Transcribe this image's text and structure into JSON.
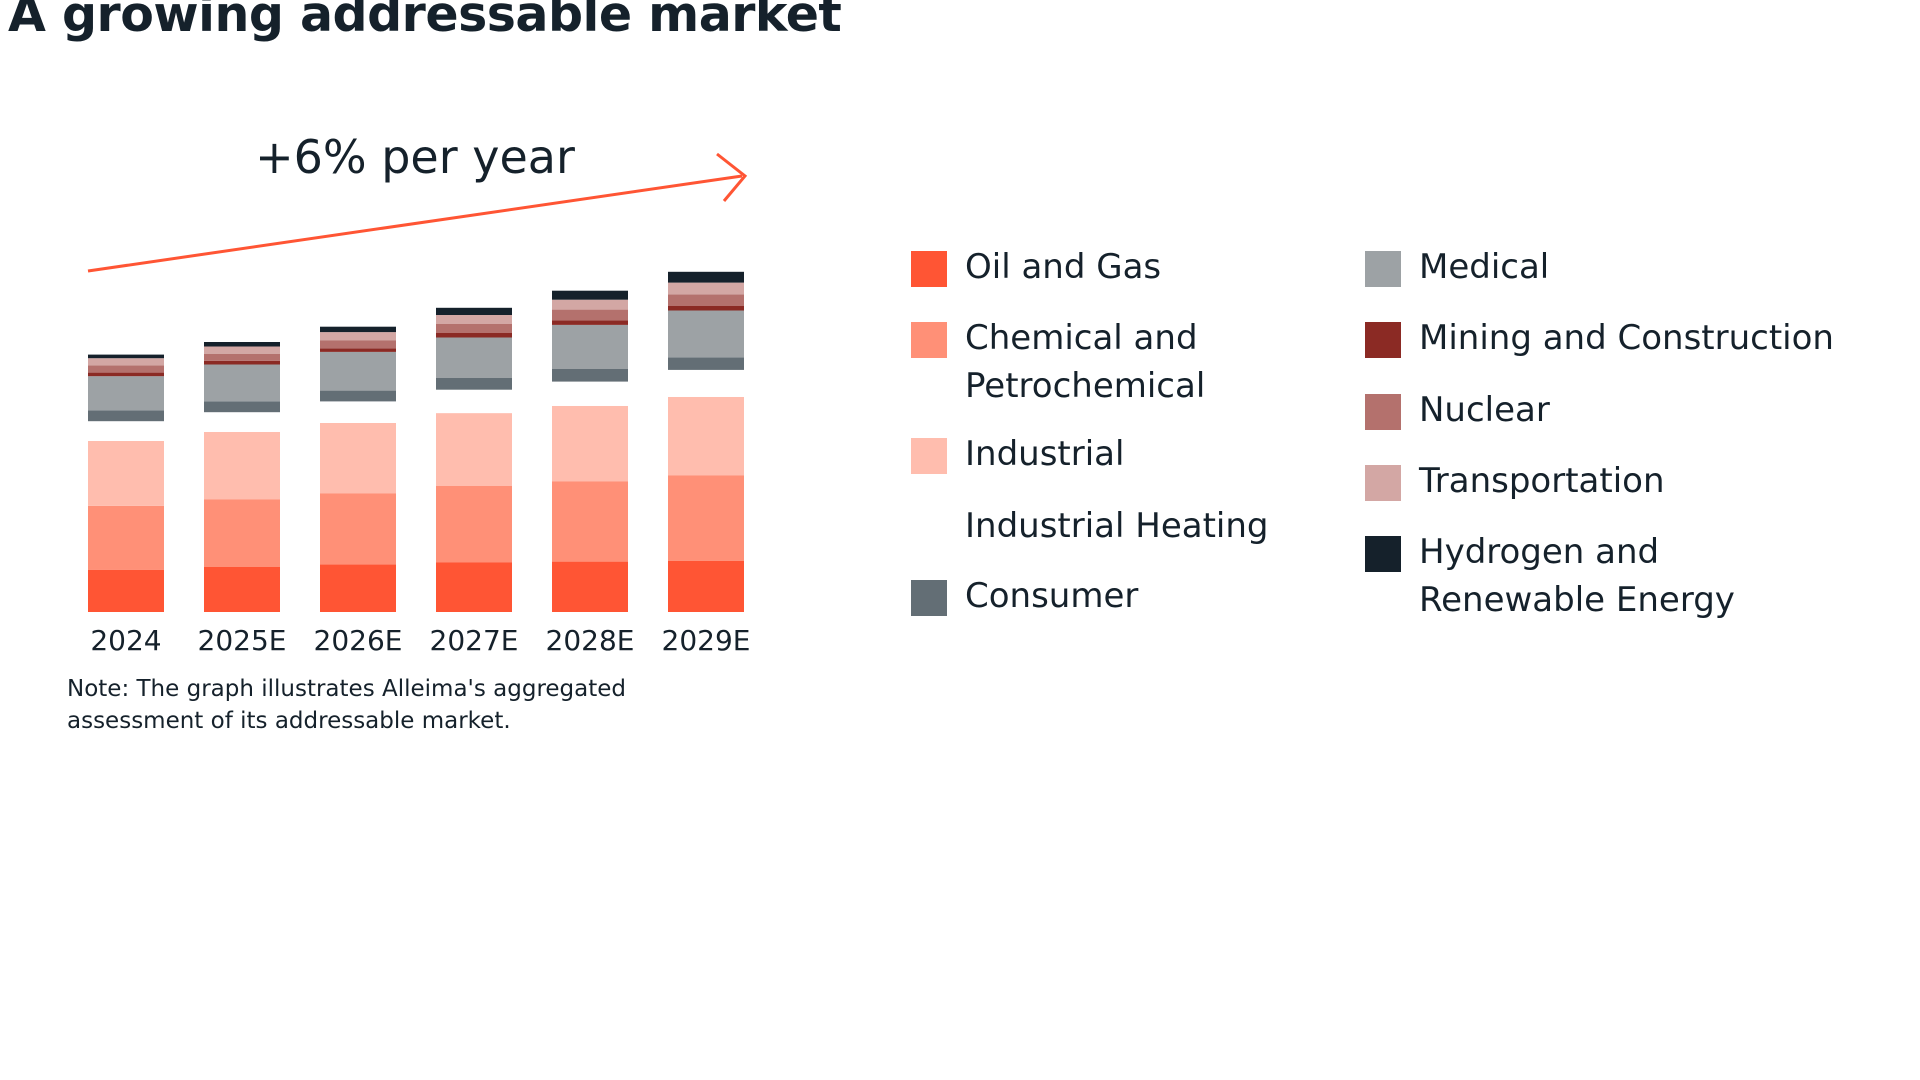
{
  "title": "A growing addressable market",
  "annotation": "+6% per year",
  "note": "Note: The graph illustrates Alleima's aggregated assessment of its addressable market.",
  "colors": {
    "text": "#15212b",
    "arrow": "#ff5534"
  },
  "legend": [
    {
      "label": "Oil and Gas",
      "color": "#ff5534"
    },
    {
      "label": "Chemical and Petrochemical",
      "color": "#ff9077"
    },
    {
      "label": "Industrial",
      "color": "#ffbdae"
    },
    {
      "label": "Industrial Heating",
      "color": "#ffffff"
    },
    {
      "label": "Consumer",
      "color": "#636e75"
    },
    {
      "label": "Medical",
      "color": "#9da2a5"
    },
    {
      "label": "Mining and Construction",
      "color": "#8b2a24"
    },
    {
      "label": "Nuclear",
      "color": "#b4716d"
    },
    {
      "label": "Transportation",
      "color": "#d3a7a4"
    },
    {
      "label": "Hydrogen and Renewable Energy",
      "color": "#15212b"
    }
  ],
  "chart_data": {
    "type": "bar",
    "stacked": true,
    "categories": [
      "2024",
      "2025E",
      "2026E",
      "2027E",
      "2028E",
      "2029E"
    ],
    "series": [
      {
        "name": "Oil and Gas",
        "color": "#ff5534",
        "values": [
          47,
          50,
          53,
          55,
          56,
          57
        ]
      },
      {
        "name": "Chemical and Petrochemical",
        "color": "#ff9077",
        "values": [
          71,
          75,
          79,
          85,
          89,
          95
        ]
      },
      {
        "name": "Industrial",
        "color": "#ffbdae",
        "values": [
          72,
          75,
          78,
          81,
          84,
          87
        ]
      },
      {
        "name": "Industrial Heating",
        "color": "#ffffff",
        "values": [
          22,
          22,
          24,
          26,
          27,
          30
        ]
      },
      {
        "name": "Consumer",
        "color": "#636e75",
        "values": [
          12,
          12,
          12,
          13,
          14,
          14
        ]
      },
      {
        "name": "Medical",
        "color": "#9da2a5",
        "values": [
          38,
          41,
          43,
          45,
          49,
          52
        ]
      },
      {
        "name": "Mining and Construction",
        "color": "#8b2a24",
        "values": [
          4,
          4,
          4,
          5,
          5,
          5
        ]
      },
      {
        "name": "Nuclear",
        "color": "#b4716d",
        "values": [
          8,
          8,
          9,
          10,
          12,
          13
        ]
      },
      {
        "name": "Transportation",
        "color": "#d3a7a4",
        "values": [
          8,
          8,
          9,
          10,
          11,
          13
        ]
      },
      {
        "name": "Hydrogen and Renewable Energy",
        "color": "#15212b",
        "values": [
          4,
          5,
          6,
          8,
          10,
          12
        ]
      }
    ],
    "title": "A growing addressable market",
    "annotation": "+6% per year",
    "xlabel": "",
    "ylabel": "",
    "ylim": [
      0,
      400
    ],
    "grid": false,
    "legend_position": "right"
  }
}
